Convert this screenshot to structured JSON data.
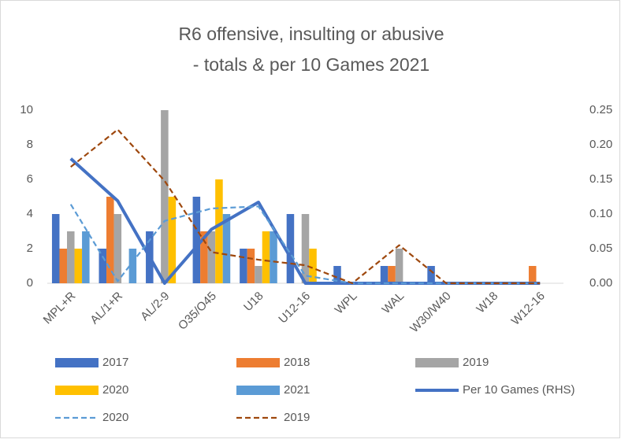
{
  "chart_data": {
    "type": "bar",
    "title": "R6 offensive, insulting or abusive",
    "subtitle": "- totals & per 10 Games 2021",
    "categories": [
      "MPL+R",
      "AL/1+R",
      "AL/2-9",
      "O35/O45",
      "U18",
      "U12-16",
      "WPL",
      "WAL",
      "W30/W40",
      "W18",
      "W12-16"
    ],
    "series": [
      {
        "name": "2017",
        "color": "#4472c4",
        "values": [
          4,
          2,
          3,
          5,
          2,
          4,
          1,
          1,
          1,
          0,
          0
        ]
      },
      {
        "name": "2018",
        "color": "#ed7d31",
        "values": [
          2,
          5,
          0,
          3,
          2,
          0,
          0,
          1,
          0,
          0,
          1
        ]
      },
      {
        "name": "2019",
        "color": "#a5a5a5",
        "values": [
          3,
          4,
          10,
          3,
          1,
          4,
          0,
          2,
          0,
          0,
          0
        ]
      },
      {
        "name": "2020",
        "color": "#ffc000",
        "values": [
          2,
          0,
          5,
          6,
          3,
          2,
          0,
          0,
          0,
          0,
          0
        ]
      },
      {
        "name": "2021",
        "color": "#5b9bd5",
        "values": [
          3,
          2,
          0,
          4,
          3,
          0,
          0,
          0,
          0,
          0,
          0
        ]
      },
      {
        "name": "Per 10 Games (RHS)",
        "color": "#4472c4",
        "type": "line",
        "axis": "y2",
        "dashed": false,
        "values": [
          0.18,
          0.119,
          0,
          0.078,
          0.117,
          0,
          0,
          0,
          0,
          0,
          0
        ]
      },
      {
        "name": "2020",
        "color": "#5b9bd5",
        "type": "line",
        "axis": "y2",
        "dashed": true,
        "values": [
          0.114,
          0.003,
          0.09,
          0.108,
          0.111,
          0.011,
          0,
          0,
          0,
          0,
          0
        ]
      },
      {
        "name": "2019",
        "color": "#9e480e",
        "type": "line",
        "axis": "y2",
        "dashed": true,
        "values": [
          0.168,
          0.222,
          0.148,
          0.045,
          0.034,
          0.026,
          0,
          0.055,
          0,
          0,
          0
        ]
      }
    ],
    "ylim": [
      0,
      10
    ],
    "yticks": [
      0,
      2,
      4,
      6,
      8,
      10
    ],
    "y2lim": [
      0,
      0.25
    ],
    "y2ticks": [
      {
        "value": 0,
        "label": "0.00"
      },
      {
        "value": 0.05,
        "label": "0.05"
      },
      {
        "value": 0.1,
        "label": "0.10"
      },
      {
        "value": 0.15,
        "label": "0.15"
      },
      {
        "value": 0.2,
        "label": "0.20"
      },
      {
        "value": 0.25,
        "label": "0.25"
      }
    ],
    "grid": false,
    "legend": "bottom"
  }
}
